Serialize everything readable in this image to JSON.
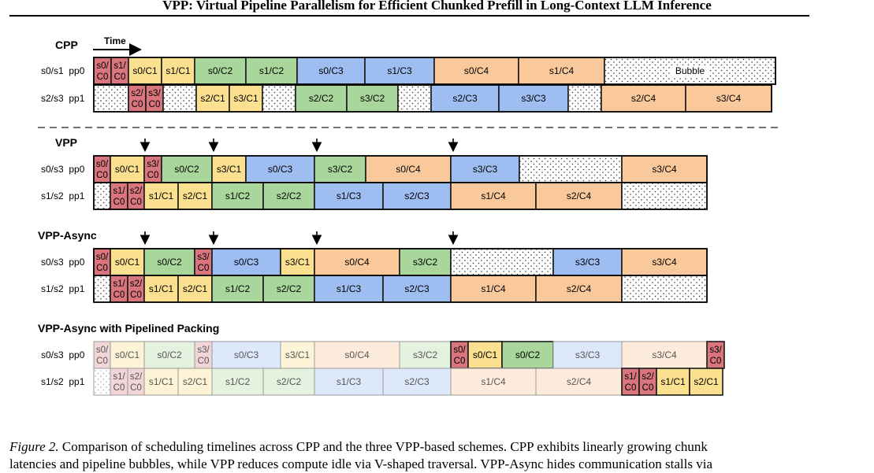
{
  "header": {
    "title": "VPP: Virtual Pipeline Parallelism for Efficient Chunked Prefill in Long-Context LLM Inference"
  },
  "colors": {
    "c0": "#d9767d",
    "c1": "#fbe08f",
    "c2": "#a9d79b",
    "c3": "#9ebdf0",
    "c4": "#f9c89b",
    "c0_faded": "#f2d5d6",
    "c1_faded": "#fdf4d8",
    "c2_faded": "#e4f2df",
    "c3_faded": "#dde8fa",
    "c4_faded": "#fdecdc",
    "border": "#1a1a1a",
    "faded_border": "#9a9a9a",
    "dash": "#444444"
  },
  "time_label": "Time",
  "panels": [
    {
      "name": "CPP",
      "rows": [
        {
          "label": "s0/s1  pp0",
          "blocks": [
            {
              "w": 22,
              "t": "s0/\nC0",
              "c": "c0"
            },
            {
              "w": 22,
              "t": "s1/\nC0",
              "c": "c0"
            },
            {
              "w": 42,
              "t": "s0/C1",
              "c": "c1"
            },
            {
              "w": 42,
              "t": "s1/C1",
              "c": "c1"
            },
            {
              "w": 65,
              "t": "s0/C2",
              "c": "c2"
            },
            {
              "w": 65,
              "t": "s1/C2",
              "c": "c2"
            },
            {
              "w": 86,
              "t": "s0/C3",
              "c": "c3"
            },
            {
              "w": 88,
              "t": "s1/C3",
              "c": "c3"
            },
            {
              "w": 107,
              "t": "s0/C4",
              "c": "c4"
            },
            {
              "w": 109,
              "t": "s1/C4",
              "c": "c4"
            },
            {
              "w": 217,
              "t": "Bubble",
              "c": "bubble"
            }
          ]
        },
        {
          "label": "s2/s3  pp1",
          "blocks": [
            {
              "w": 44,
              "t": "",
              "c": "bubble"
            },
            {
              "w": 22,
              "t": "s2/\nC0",
              "c": "c0"
            },
            {
              "w": 22,
              "t": "s3/\nC0",
              "c": "c0"
            },
            {
              "w": 42,
              "t": "",
              "c": "bubble"
            },
            {
              "w": 42,
              "t": "s2/C1",
              "c": "c1"
            },
            {
              "w": 42,
              "t": "s3/C1",
              "c": "c1"
            },
            {
              "w": 42,
              "t": "",
              "c": "bubble"
            },
            {
              "w": 65,
              "t": "s2/C2",
              "c": "c2"
            },
            {
              "w": 65,
              "t": "s3/C2",
              "c": "c2"
            },
            {
              "w": 42,
              "t": "",
              "c": "bubble"
            },
            {
              "w": 86,
              "t": "s2/C3",
              "c": "c3"
            },
            {
              "w": 88,
              "t": "s3/C3",
              "c": "c3"
            },
            {
              "w": 42,
              "t": "",
              "c": "bubble"
            },
            {
              "w": 107,
              "t": "s2/C4",
              "c": "c4"
            },
            {
              "w": 109,
              "t": "s3/C4",
              "c": "c4"
            }
          ]
        }
      ]
    },
    {
      "name": "VPP",
      "rows": [
        {
          "label": "s0/s3  pp0",
          "blocks": [
            {
              "w": 21,
              "t": "s0/\nC0",
              "c": "c0"
            },
            {
              "w": 43,
              "t": "s0/C1",
              "c": "c1"
            },
            {
              "w": 22,
              "t": "s3/\nC0",
              "c": "c0"
            },
            {
              "w": 64,
              "t": "s0/C2",
              "c": "c2"
            },
            {
              "w": 43,
              "t": "s3/C1",
              "c": "c1"
            },
            {
              "w": 87,
              "t": "s0/C3",
              "c": "c3"
            },
            {
              "w": 65,
              "t": "s3/C2",
              "c": "c2"
            },
            {
              "w": 108,
              "t": "s0/C4",
              "c": "c4"
            },
            {
              "w": 87,
              "t": "s3/C3",
              "c": "c3"
            },
            {
              "w": 130,
              "t": "",
              "c": "bubble"
            },
            {
              "w": 108,
              "t": "s3/C4",
              "c": "c4"
            }
          ]
        },
        {
          "label": "s1/s2  pp1",
          "blocks": [
            {
              "w": 21,
              "t": "",
              "c": "bubble"
            },
            {
              "w": 22,
              "t": "s1/\nC0",
              "c": "c0"
            },
            {
              "w": 21,
              "t": "s2/\nC0",
              "c": "c0"
            },
            {
              "w": 43,
              "t": "s1/C1",
              "c": "c1"
            },
            {
              "w": 43,
              "t": "s2/C1",
              "c": "c1"
            },
            {
              "w": 65,
              "t": "s1/C2",
              "c": "c2"
            },
            {
              "w": 65,
              "t": "s2/C2",
              "c": "c2"
            },
            {
              "w": 87,
              "t": "s1/C3",
              "c": "c3"
            },
            {
              "w": 86,
              "t": "s2/C3",
              "c": "c3"
            },
            {
              "w": 108,
              "t": "s1/C4",
              "c": "c4"
            },
            {
              "w": 109,
              "t": "s2/C4",
              "c": "c4"
            },
            {
              "w": 108,
              "t": "",
              "c": "bubble"
            }
          ]
        }
      ]
    },
    {
      "name": "VPP-Async",
      "rows": [
        {
          "label": "s0/s3  pp0",
          "blocks": [
            {
              "w": 21,
              "t": "s0/\nC0",
              "c": "c0"
            },
            {
              "w": 43,
              "t": "s0/C1",
              "c": "c1"
            },
            {
              "w": 64,
              "t": "s0/C2",
              "c": "c2"
            },
            {
              "w": 22,
              "t": "s3/\nC0",
              "c": "c0"
            },
            {
              "w": 87,
              "t": "s0/C3",
              "c": "c3"
            },
            {
              "w": 43,
              "t": "s3/C1",
              "c": "c1"
            },
            {
              "w": 108,
              "t": "s0/C4",
              "c": "c4"
            },
            {
              "w": 65,
              "t": "s3/C2",
              "c": "c2"
            },
            {
              "w": 130,
              "t": "",
              "c": "bubble"
            },
            {
              "w": 87,
              "t": "s3/C3",
              "c": "c3"
            },
            {
              "w": 108,
              "t": "s3/C4",
              "c": "c4"
            }
          ]
        },
        {
          "label": "s1/s2  pp1",
          "blocks": [
            {
              "w": 21,
              "t": "",
              "c": "bubble"
            },
            {
              "w": 22,
              "t": "s1/\nC0",
              "c": "c0"
            },
            {
              "w": 21,
              "t": "s2/\nC0",
              "c": "c0"
            },
            {
              "w": 43,
              "t": "s1/C1",
              "c": "c1"
            },
            {
              "w": 43,
              "t": "s2/C1",
              "c": "c1"
            },
            {
              "w": 65,
              "t": "s1/C2",
              "c": "c2"
            },
            {
              "w": 65,
              "t": "s2/C2",
              "c": "c2"
            },
            {
              "w": 87,
              "t": "s1/C3",
              "c": "c3"
            },
            {
              "w": 86,
              "t": "s2/C3",
              "c": "c3"
            },
            {
              "w": 108,
              "t": "s1/C4",
              "c": "c4"
            },
            {
              "w": 109,
              "t": "s2/C4",
              "c": "c4"
            },
            {
              "w": 108,
              "t": "",
              "c": "bubble"
            }
          ]
        }
      ]
    },
    {
      "name": "VPP-Async with Pipelined Packing",
      "rows": [
        {
          "label": "s0/s3  pp0",
          "blocks": [
            {
              "w": 21,
              "t": "s0/\nC0",
              "c": "c0",
              "f": 1
            },
            {
              "w": 43,
              "t": "s0/C1",
              "c": "c1",
              "f": 1
            },
            {
              "w": 64,
              "t": "s0/C2",
              "c": "c2",
              "f": 1
            },
            {
              "w": 22,
              "t": "s3/\nC0",
              "c": "c0",
              "f": 1
            },
            {
              "w": 87,
              "t": "s0/C3",
              "c": "c3",
              "f": 1
            },
            {
              "w": 43,
              "t": "s3/C1",
              "c": "c1",
              "f": 1
            },
            {
              "w": 108,
              "t": "s0/C4",
              "c": "c4",
              "f": 1
            },
            {
              "w": 65,
              "t": "s3/C2",
              "c": "c2",
              "f": 1
            },
            {
              "w": 22,
              "t": "s0/\nC0",
              "c": "c0"
            },
            {
              "w": 43,
              "t": "s0/C1",
              "c": "c1"
            },
            {
              "w": 65,
              "t": "s0/C2",
              "c": "c2"
            },
            {
              "w": 87,
              "t": "s3/C3",
              "c": "c3",
              "f": 1
            },
            {
              "w": 108,
              "t": "s3/C4",
              "c": "c4",
              "f": 1
            },
            {
              "w": 22,
              "t": "s3/\nC0",
              "c": "c0"
            }
          ]
        },
        {
          "label": "s1/s2  pp1",
          "blocks": [
            {
              "w": 21,
              "t": "",
              "c": "bubble",
              "f": 1
            },
            {
              "w": 22,
              "t": "s1/\nC0",
              "c": "c0",
              "f": 1
            },
            {
              "w": 21,
              "t": "s2/\nC0",
              "c": "c0",
              "f": 1
            },
            {
              "w": 43,
              "t": "s1/C1",
              "c": "c1",
              "f": 1
            },
            {
              "w": 43,
              "t": "s2/C1",
              "c": "c1",
              "f": 1
            },
            {
              "w": 65,
              "t": "s1/C2",
              "c": "c2",
              "f": 1
            },
            {
              "w": 65,
              "t": "s2/C2",
              "c": "c2",
              "f": 1
            },
            {
              "w": 87,
              "t": "s1/C3",
              "c": "c3",
              "f": 1
            },
            {
              "w": 86,
              "t": "s2/C3",
              "c": "c3",
              "f": 1
            },
            {
              "w": 108,
              "t": "s1/C4",
              "c": "c4",
              "f": 1
            },
            {
              "w": 109,
              "t": "s2/C4",
              "c": "c4",
              "f": 1
            },
            {
              "w": 22,
              "t": "s1/\nC0",
              "c": "c0"
            },
            {
              "w": 22,
              "t": "s2/\nC0",
              "c": "c0"
            },
            {
              "w": 42,
              "t": "s1/C1",
              "c": "c1"
            },
            {
              "w": 42,
              "t": "s2/C1",
              "c": "c1"
            }
          ]
        }
      ]
    }
  ],
  "caption": {
    "lead": "Figure 2.",
    "line1": " Comparison of scheduling timelines across CPP and the three VPP-based schemes.  CPP exhibits linearly growing chunk",
    "line2": "latencies and pipeline bubbles, while VPP reduces compute idle via V-shaped traversal. VPP-Async hides communication stalls via"
  }
}
